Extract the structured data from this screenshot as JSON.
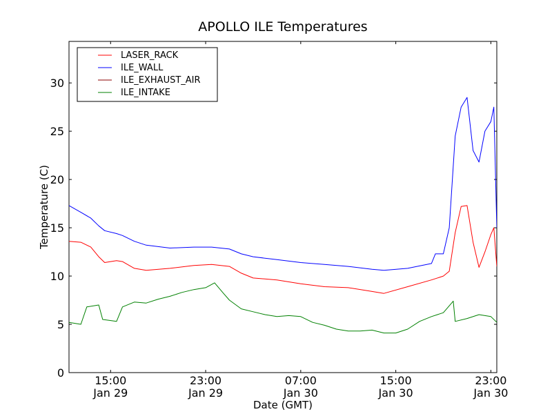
{
  "chart_data": {
    "type": "line",
    "title": "APOLLO ILE Temperatures",
    "xlabel": "Date (GMT)",
    "ylabel": "Temperature (C)",
    "xlim": [
      "2013-01-29 11:30",
      "2013-01-30 23:30"
    ],
    "ylim": [
      0,
      34.3
    ],
    "y_ticks": [
      0,
      5,
      10,
      15,
      20,
      25,
      30
    ],
    "x_ticks": [
      {
        "x": "2013-01-29 15:00",
        "time": "15:00",
        "date": "Jan 29"
      },
      {
        "x": "2013-01-29 23:00",
        "time": "23:00",
        "date": "Jan 29"
      },
      {
        "x": "2013-01-30 07:00",
        "time": "07:00",
        "date": "Jan 30"
      },
      {
        "x": "2013-01-30 15:00",
        "time": "15:00",
        "date": "Jan 30"
      },
      {
        "x": "2013-01-30 23:00",
        "time": "23:00",
        "date": "Jan 30"
      }
    ],
    "grid": false,
    "legend_position": "top-left",
    "series": [
      {
        "name": "LASER_RACK",
        "color": "#ff0000",
        "x": [
          "2013-01-29 11:30",
          "2013-01-29 12:30",
          "2013-01-29 13:20",
          "2013-01-29 14:00",
          "2013-01-29 14:30",
          "2013-01-29 15:30",
          "2013-01-29 16:00",
          "2013-01-29 17:00",
          "2013-01-29 18:00",
          "2013-01-29 20:00",
          "2013-01-29 22:00",
          "2013-01-29 23:30",
          "2013-01-30 01:00",
          "2013-01-30 02:00",
          "2013-01-30 03:00",
          "2013-01-30 05:00",
          "2013-01-30 07:00",
          "2013-01-30 09:00",
          "2013-01-30 11:00",
          "2013-01-30 13:00",
          "2013-01-30 14:00",
          "2013-01-30 16:00",
          "2013-01-30 18:00",
          "2013-01-30 19:00",
          "2013-01-30 19:30",
          "2013-01-30 20:00",
          "2013-01-30 20:30",
          "2013-01-30 21:00",
          "2013-01-30 21:30",
          "2013-01-30 22:00",
          "2013-01-30 22:30",
          "2013-01-30 23:00",
          "2013-01-30 23:15",
          "2013-01-30 23:30"
        ],
        "y": [
          13.6,
          13.5,
          13.0,
          12.0,
          11.4,
          11.6,
          11.5,
          10.8,
          10.6,
          10.8,
          11.1,
          11.2,
          11.0,
          10.3,
          9.8,
          9.6,
          9.2,
          8.9,
          8.8,
          8.4,
          8.2,
          8.9,
          9.6,
          10.0,
          10.5,
          14.5,
          17.2,
          17.3,
          13.5,
          10.9,
          12.5,
          14.3,
          15.0,
          11.0
        ]
      },
      {
        "name": "ILE_WALL",
        "color": "#0000ff",
        "x": [
          "2013-01-29 11:30",
          "2013-01-29 12:30",
          "2013-01-29 13:20",
          "2013-01-29 14:00",
          "2013-01-29 14:30",
          "2013-01-29 15:30",
          "2013-01-29 16:00",
          "2013-01-29 17:00",
          "2013-01-29 18:00",
          "2013-01-29 20:00",
          "2013-01-29 22:00",
          "2013-01-29 23:30",
          "2013-01-30 01:00",
          "2013-01-30 02:00",
          "2013-01-30 03:00",
          "2013-01-30 05:00",
          "2013-01-30 07:00",
          "2013-01-30 09:00",
          "2013-01-30 11:00",
          "2013-01-30 13:00",
          "2013-01-30 14:00",
          "2013-01-30 16:00",
          "2013-01-30 18:00",
          "2013-01-30 18:20",
          "2013-01-30 19:00",
          "2013-01-30 19:30",
          "2013-01-30 20:00",
          "2013-01-30 20:30",
          "2013-01-30 21:00",
          "2013-01-30 21:30",
          "2013-01-30 22:00",
          "2013-01-30 22:30",
          "2013-01-30 23:00",
          "2013-01-30 23:15",
          "2013-01-30 23:30"
        ],
        "y": [
          17.3,
          16.6,
          16.0,
          15.2,
          14.7,
          14.4,
          14.2,
          13.6,
          13.2,
          12.9,
          13.0,
          13.0,
          12.8,
          12.3,
          12.0,
          11.7,
          11.4,
          11.2,
          11.0,
          10.7,
          10.6,
          10.8,
          11.3,
          12.3,
          12.3,
          15.0,
          24.5,
          27.5,
          28.5,
          23.0,
          21.8,
          25.0,
          26.0,
          27.5,
          15.0
        ]
      },
      {
        "name": "ILE_EXHAUST_AIR",
        "color": "#8b0000",
        "x": [],
        "y": []
      },
      {
        "name": "ILE_INTAKE",
        "color": "#008000",
        "x": [
          "2013-01-29 11:30",
          "2013-01-29 12:30",
          "2013-01-29 13:00",
          "2013-01-29 14:00",
          "2013-01-29 14:20",
          "2013-01-29 15:30",
          "2013-01-29 16:00",
          "2013-01-29 17:00",
          "2013-01-29 18:00",
          "2013-01-29 19:00",
          "2013-01-29 20:00",
          "2013-01-29 21:00",
          "2013-01-29 22:00",
          "2013-01-29 23:00",
          "2013-01-29 23:45",
          "2013-01-30 00:30",
          "2013-01-30 01:00",
          "2013-01-30 02:00",
          "2013-01-30 03:00",
          "2013-01-30 04:00",
          "2013-01-30 05:00",
          "2013-01-30 06:00",
          "2013-01-30 07:00",
          "2013-01-30 08:00",
          "2013-01-30 09:00",
          "2013-01-30 10:00",
          "2013-01-30 11:00",
          "2013-01-30 12:00",
          "2013-01-30 13:00",
          "2013-01-30 14:00",
          "2013-01-30 15:00",
          "2013-01-30 16:00",
          "2013-01-30 17:00",
          "2013-01-30 18:00",
          "2013-01-30 19:00",
          "2013-01-30 19:50",
          "2013-01-30 20:00",
          "2013-01-30 21:00",
          "2013-01-30 22:00",
          "2013-01-30 23:00",
          "2013-01-30 23:30"
        ],
        "y": [
          5.2,
          5.0,
          6.8,
          7.0,
          5.5,
          5.3,
          6.8,
          7.3,
          7.2,
          7.6,
          7.9,
          8.3,
          8.6,
          8.8,
          9.3,
          8.2,
          7.5,
          6.6,
          6.3,
          6.0,
          5.8,
          5.9,
          5.8,
          5.2,
          4.9,
          4.5,
          4.3,
          4.3,
          4.4,
          4.1,
          4.1,
          4.5,
          5.3,
          5.8,
          6.2,
          7.4,
          5.3,
          5.6,
          6.0,
          5.8,
          5.2
        ]
      }
    ]
  }
}
